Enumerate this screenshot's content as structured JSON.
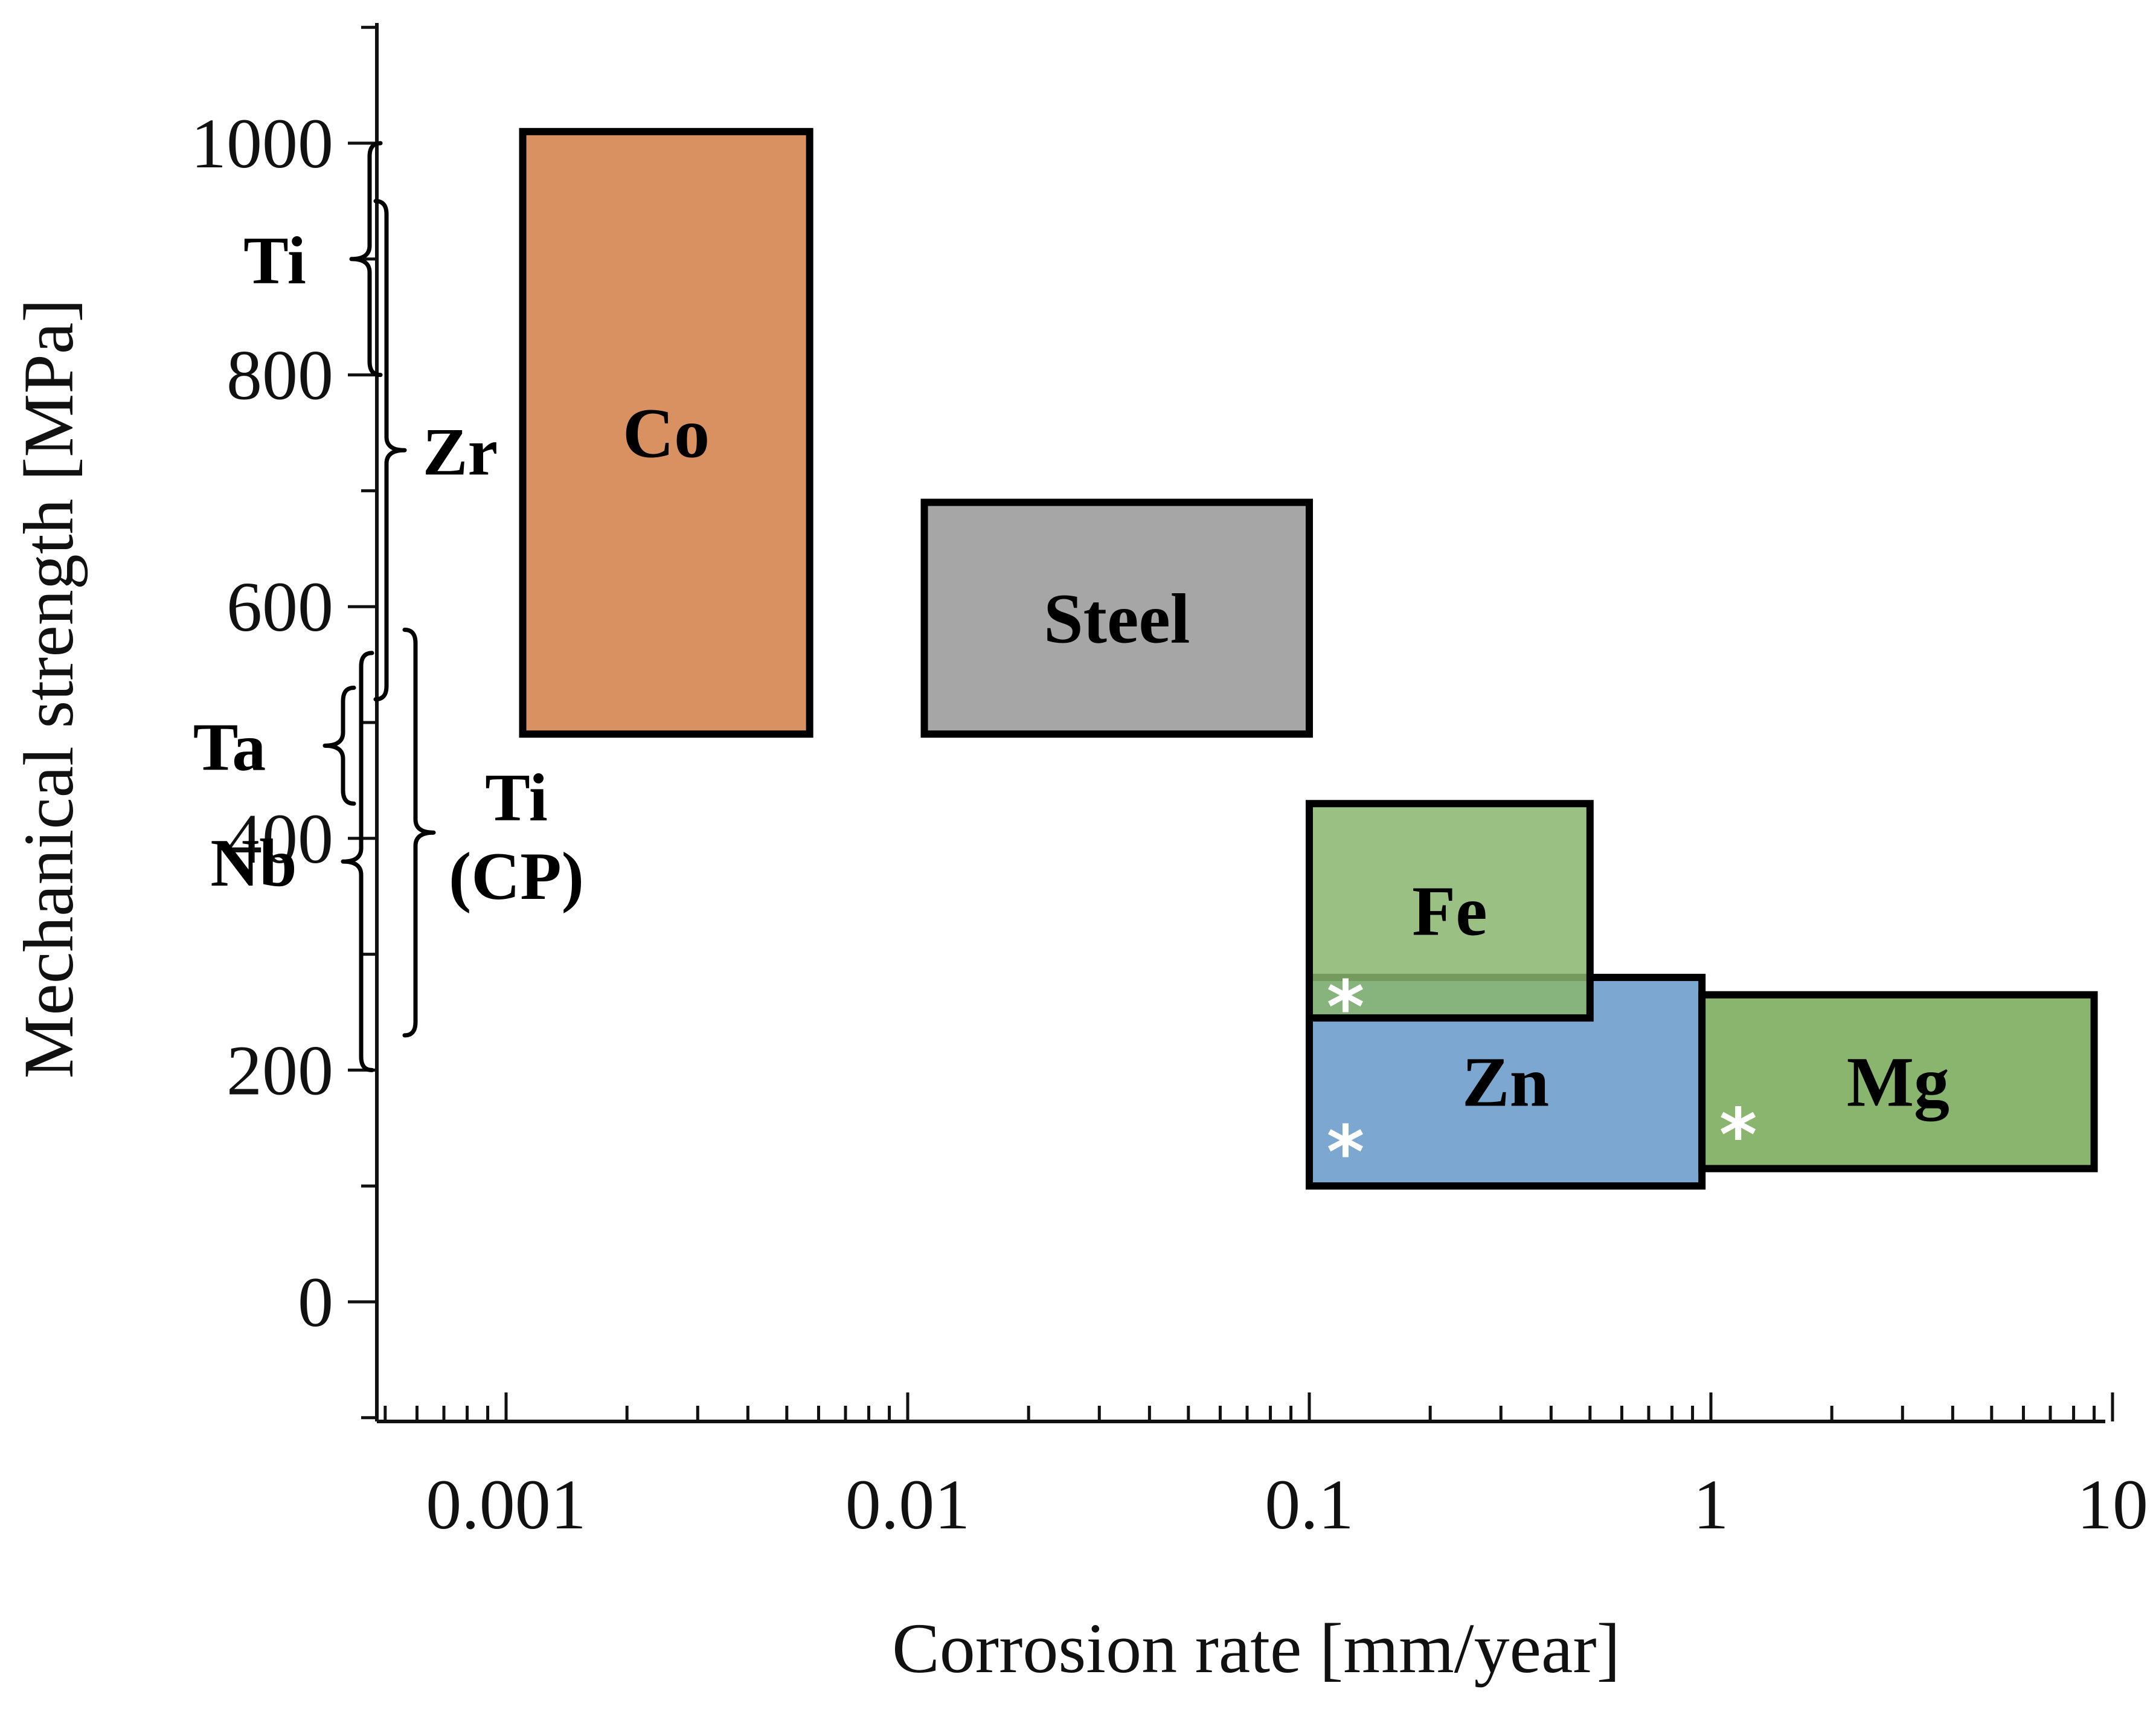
{
  "chart_data": {
    "type": "range-box",
    "title": "",
    "xlabel": "Corrosion rate [mm/year]",
    "ylabel": "Mechanical strength [MPa]",
    "x_scale": "log",
    "xlim": [
      0.0005,
      10
    ],
    "ylim": [
      -100,
      1100
    ],
    "x_ticks": [
      {
        "value": 0.001,
        "label": "0.001"
      },
      {
        "value": 0.01,
        "label": "0.01"
      },
      {
        "value": 0.1,
        "label": "0.1"
      },
      {
        "value": 1,
        "label": "1"
      },
      {
        "value": 10,
        "label": "10"
      }
    ],
    "y_ticks": [
      {
        "value": 0,
        "label": "0"
      },
      {
        "value": 200,
        "label": "200"
      },
      {
        "value": 400,
        "label": "400"
      },
      {
        "value": 600,
        "label": "600"
      },
      {
        "value": 800,
        "label": "800"
      },
      {
        "value": 1000,
        "label": "1000"
      }
    ],
    "boxes": [
      {
        "name": "Co",
        "label": "Co",
        "x": [
          0.0011,
          0.0057
        ],
        "y": [
          490,
          1010
        ],
        "color": "#d99162",
        "marker": ""
      },
      {
        "name": "Steel",
        "label": "Steel",
        "x": [
          0.011,
          0.1
        ],
        "y": [
          490,
          690
        ],
        "color": "#a6a6a6",
        "marker": ""
      },
      {
        "name": "Zn",
        "label": "Zn",
        "x": [
          0.1,
          0.95
        ],
        "y": [
          100,
          280
        ],
        "color": "#7ba7d0",
        "marker": "*"
      },
      {
        "name": "Mg",
        "label": "Mg",
        "x": [
          0.95,
          9
        ],
        "y": [
          115,
          265
        ],
        "color": "#8ab56e",
        "marker": "*"
      },
      {
        "name": "Fe",
        "label": "Fe",
        "x": [
          0.1,
          0.5
        ],
        "y": [
          245,
          430
        ],
        "color": "#8ab56e",
        "marker": "*"
      }
    ],
    "brace_ranges": [
      {
        "name": "Ti",
        "label_lines": [
          "Ti"
        ],
        "y": [
          800,
          1000
        ],
        "side": "left"
      },
      {
        "name": "Zr",
        "label_lines": [
          "Zr"
        ],
        "y": [
          520,
          950
        ],
        "side": "right"
      },
      {
        "name": "Ta",
        "label_lines": [
          "Ta"
        ],
        "y": [
          430,
          530
        ],
        "side": "left"
      },
      {
        "name": "Nb",
        "label_lines": [
          "Nb"
        ],
        "y": [
          200,
          560
        ],
        "side": "left"
      },
      {
        "name": "Ti-CP",
        "label_lines": [
          "Ti",
          "(CP)"
        ],
        "y": [
          230,
          580
        ],
        "side": "right"
      }
    ]
  }
}
